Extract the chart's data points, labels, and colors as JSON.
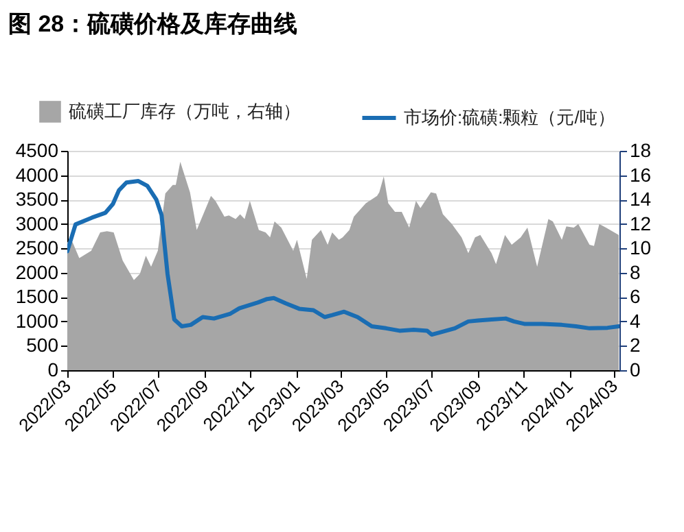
{
  "chart_data": {
    "type": "line",
    "title": "图 28：硫磺价格及库存曲线",
    "xlim": [
      "2022-03-01",
      "2024-03-08"
    ],
    "xticks": [
      {
        "value": "2022-03-01",
        "label": "2022/03"
      },
      {
        "value": "2022-05-01",
        "label": "2022/05"
      },
      {
        "value": "2022-07-01",
        "label": "2022/07"
      },
      {
        "value": "2022-09-01",
        "label": "2022/09"
      },
      {
        "value": "2022-11-01",
        "label": "2022/11"
      },
      {
        "value": "2023-01-01",
        "label": "2023/01"
      },
      {
        "value": "2023-03-01",
        "label": "2023/03"
      },
      {
        "value": "2023-05-01",
        "label": "2023/05"
      },
      {
        "value": "2023-07-01",
        "label": "2023/07"
      },
      {
        "value": "2023-09-01",
        "label": "2023/09"
      },
      {
        "value": "2023-11-01",
        "label": "2023/11"
      },
      {
        "value": "2024-01-01",
        "label": "2024/01"
      },
      {
        "value": "2024-03-01",
        "label": "2024/03"
      }
    ],
    "ylim": [
      0,
      4500
    ],
    "yticks": [
      0,
      500,
      1000,
      1500,
      2000,
      2500,
      3000,
      3500,
      4000,
      4500
    ],
    "y2lim": [
      0,
      18
    ],
    "y2ticks": [
      0,
      2,
      4,
      6,
      8,
      10,
      12,
      14,
      16,
      18
    ],
    "grid": "y",
    "legend": "top",
    "series": [
      {
        "name": "硫磺工厂库存（万吨，右轴）",
        "type": "area",
        "axis": "y2",
        "color": "#a6a6a6",
        "x": [
          "2022-03-01",
          "2022-03-08",
          "2022-03-17",
          "2022-04-02",
          "2022-04-14",
          "2022-04-23",
          "2022-05-02",
          "2022-05-14",
          "2022-05-29",
          "2022-06-06",
          "2022-06-14",
          "2022-06-21",
          "2022-06-30",
          "2022-07-10",
          "2022-07-20",
          "2022-07-24",
          "2022-07-30",
          "2022-08-12",
          "2022-08-21",
          "2022-09-09",
          "2022-09-15",
          "2022-09-27",
          "2022-10-03",
          "2022-10-12",
          "2022-10-18",
          "2022-10-24",
          "2022-10-31",
          "2022-11-12",
          "2022-11-21",
          "2022-11-27",
          "2022-12-03",
          "2022-12-12",
          "2022-12-28",
          "2023-01-02",
          "2023-01-15",
          "2023-01-22",
          "2023-02-03",
          "2023-02-12",
          "2023-02-18",
          "2023-02-27",
          "2023-03-04",
          "2023-03-13",
          "2023-03-19",
          "2023-04-04",
          "2023-04-19",
          "2023-04-22",
          "2023-04-28",
          "2023-05-04",
          "2023-05-13",
          "2023-05-22",
          "2023-06-01",
          "2023-06-10",
          "2023-06-16",
          "2023-06-30",
          "2023-07-07",
          "2023-07-16",
          "2023-07-28",
          "2023-08-10",
          "2023-08-19",
          "2023-08-28",
          "2023-09-04",
          "2023-09-13",
          "2023-09-19",
          "2023-09-25",
          "2023-10-07",
          "2023-10-16",
          "2023-10-28",
          "2023-11-06",
          "2023-11-19",
          "2023-12-04",
          "2023-12-10",
          "2023-12-22",
          "2023-12-28",
          "2024-01-07",
          "2024-01-13",
          "2024-01-28",
          "2024-02-03",
          "2024-02-10",
          "2024-02-19",
          "2024-03-07"
        ],
        "values": [
          10.5,
          10.5,
          9.2,
          9.8,
          11.3,
          11.4,
          11.3,
          9.0,
          7.4,
          7.9,
          9.4,
          8.5,
          9.8,
          14.5,
          15.2,
          15.2,
          17.1,
          14.6,
          11.5,
          14.3,
          13.9,
          12.6,
          12.7,
          12.4,
          12.8,
          12.4,
          13.9,
          11.5,
          11.3,
          10.9,
          12.2,
          11.7,
          9.8,
          10.7,
          7.5,
          10.7,
          11.5,
          10.3,
          11.3,
          10.7,
          10.9,
          11.5,
          12.6,
          13.7,
          14.3,
          14.6,
          15.9,
          13.7,
          13.0,
          13.0,
          11.7,
          13.9,
          13.3,
          14.6,
          14.5,
          12.8,
          12.0,
          10.9,
          9.6,
          10.9,
          11.1,
          10.2,
          9.6,
          8.7,
          11.1,
          10.3,
          10.9,
          11.7,
          8.5,
          12.4,
          12.2,
          10.7,
          11.8,
          11.7,
          12.0,
          10.3,
          10.2,
          12.0,
          11.7,
          11.1
        ]
      },
      {
        "name": "市场价:硫磺:颗粒（元/吨）",
        "color": "#1a6db3",
        "x": [
          "2022-03-01",
          "2022-03-12",
          "2022-04-03",
          "2022-04-21",
          "2022-05-01",
          "2022-05-09",
          "2022-05-19",
          "2022-06-04",
          "2022-06-16",
          "2022-06-28",
          "2022-07-05",
          "2022-07-13",
          "2022-07-22",
          "2022-08-01",
          "2022-08-13",
          "2022-08-29",
          "2022-09-13",
          "2022-10-05",
          "2022-10-17",
          "2022-11-11",
          "2022-11-23",
          "2022-12-02",
          "2022-12-18",
          "2023-01-05",
          "2023-01-24",
          "2023-02-08",
          "2023-02-18",
          "2023-03-06",
          "2023-03-24",
          "2023-04-12",
          "2023-05-01",
          "2023-05-19",
          "2023-06-07",
          "2023-06-25",
          "2023-07-01",
          "2023-07-13",
          "2023-08-01",
          "2023-08-19",
          "2023-09-01",
          "2023-09-19",
          "2023-10-08",
          "2023-10-19",
          "2023-11-02",
          "2023-11-26",
          "2023-12-22",
          "2024-01-10",
          "2024-01-28",
          "2024-02-21",
          "2024-03-07"
        ],
        "values": [
          2440,
          2990,
          3130,
          3230,
          3410,
          3690,
          3850,
          3880,
          3780,
          3500,
          3180,
          1970,
          1040,
          900,
          930,
          1090,
          1060,
          1160,
          1270,
          1390,
          1460,
          1480,
          1370,
          1260,
          1230,
          1090,
          1130,
          1200,
          1090,
          900,
          860,
          810,
          830,
          810,
          730,
          780,
          860,
          1000,
          1020,
          1040,
          1060,
          1000,
          950,
          950,
          930,
          900,
          860,
          870,
          900
        ]
      }
    ]
  }
}
